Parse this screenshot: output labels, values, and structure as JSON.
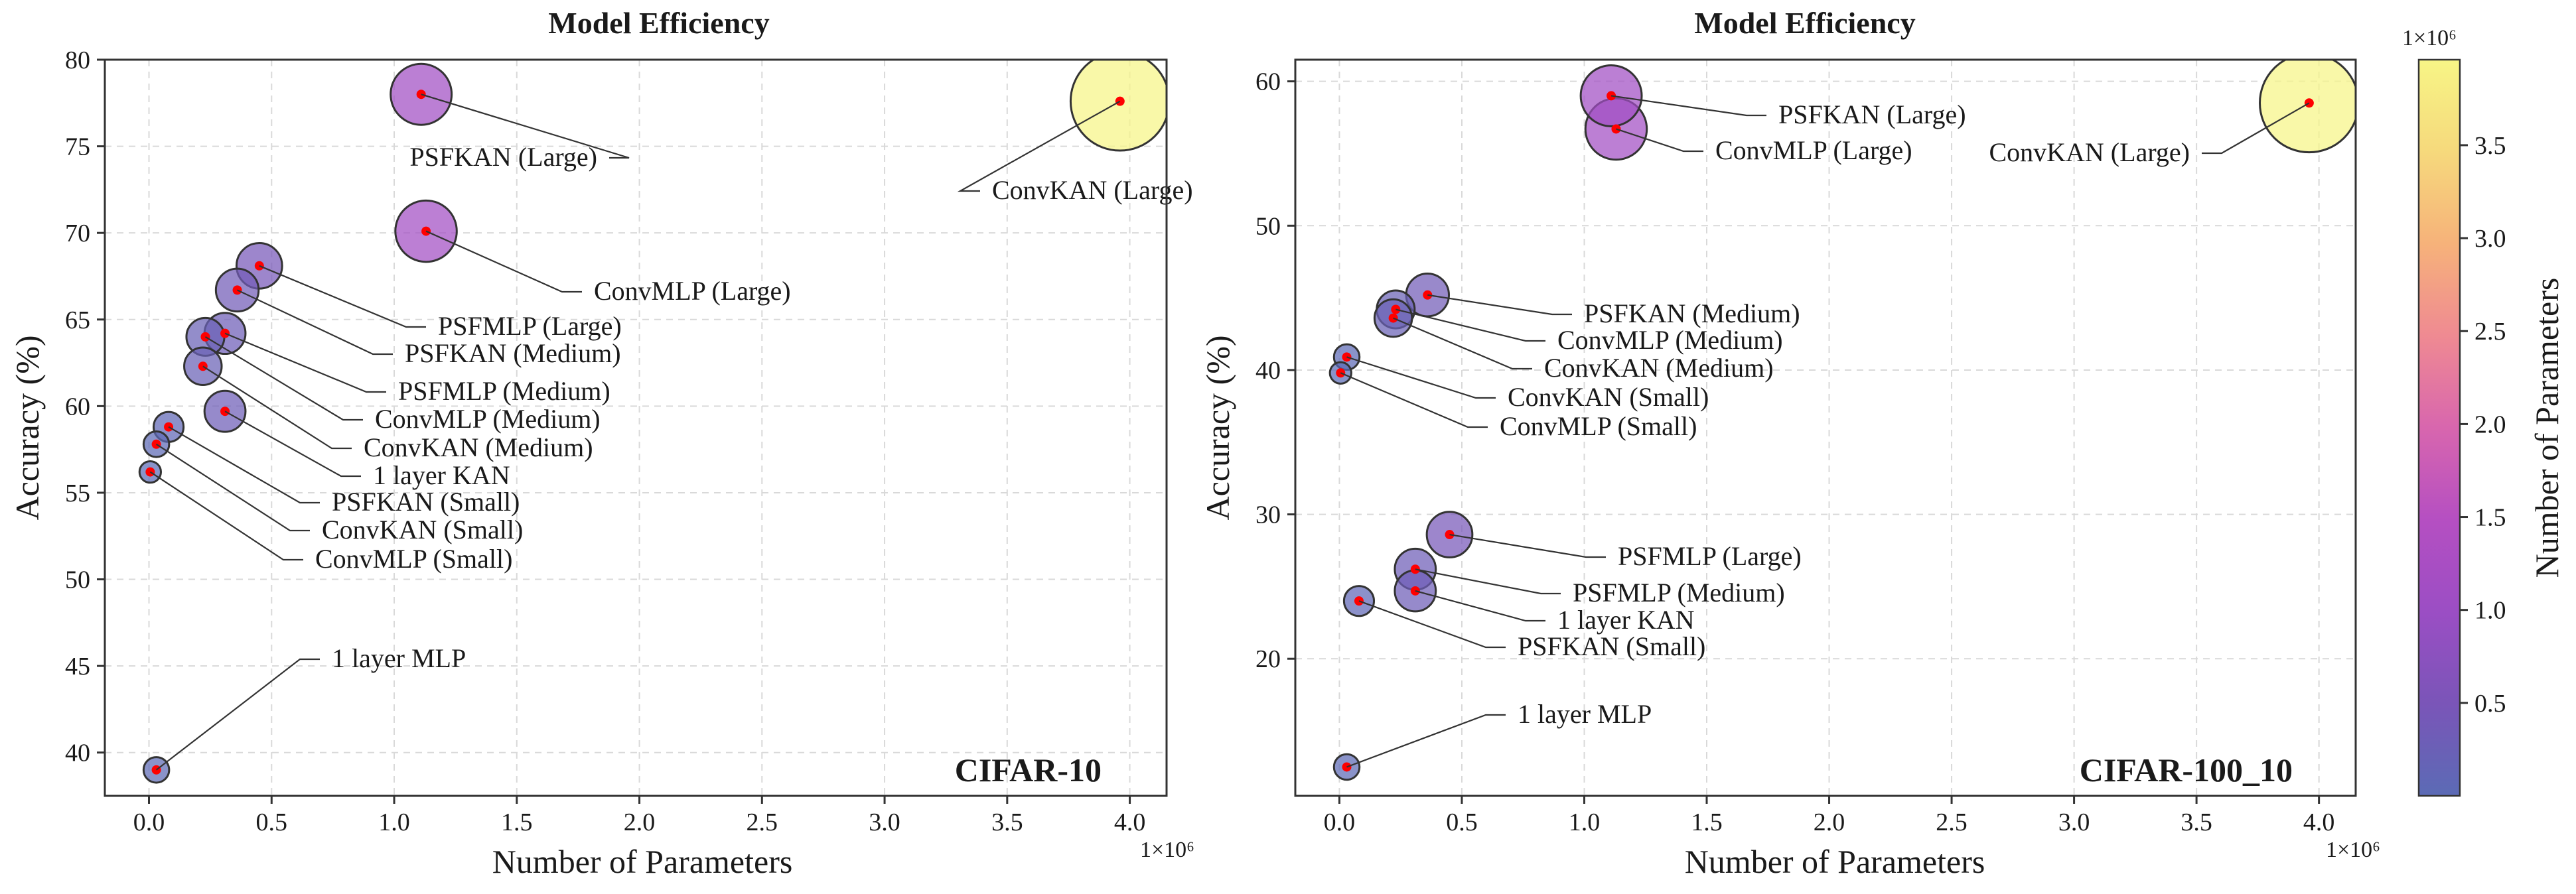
{
  "colorbar": {
    "label": "Number of Parameters",
    "multiplier": "1×10⁶",
    "ticks": [
      0.5,
      1.0,
      1.5,
      2.0,
      2.5,
      3.0,
      3.5
    ],
    "tick_labels": [
      "0.5",
      "1.0",
      "1.5",
      "2.0",
      "2.5",
      "3.0",
      "3.5"
    ],
    "range": [
      0,
      3960000
    ],
    "colors": [
      "#5b6bb5",
      "#7a55b8",
      "#9b4ec4",
      "#b54fc2",
      "#d866ae",
      "#ef8a92",
      "#f6b27a",
      "#f6d97c",
      "#f7f586"
    ]
  },
  "chart_data": [
    {
      "type": "scatter",
      "title": "Model Efficiency",
      "dataset_label": "CIFAR-10",
      "xlabel": "Number of Parameters",
      "ylabel": "Accuracy (%)",
      "x_multiplier": "1×10⁶",
      "xlim": [
        -0.18,
        4.15
      ],
      "ylim": [
        37.5,
        80
      ],
      "xticks": [
        0.0,
        0.5,
        1.0,
        1.5,
        2.0,
        2.5,
        3.0,
        3.5,
        4.0
      ],
      "xtick_labels": [
        "0.0",
        "0.5",
        "1.0",
        "1.5",
        "2.0",
        "2.5",
        "3.0",
        "3.5",
        "4.0"
      ],
      "yticks": [
        40,
        45,
        50,
        55,
        60,
        65,
        70,
        75,
        80
      ],
      "ytick_labels": [
        "40",
        "45",
        "50",
        "55",
        "60",
        "65",
        "70",
        "75",
        "80"
      ],
      "points": [
        {
          "label": "PSFKAN (Large)",
          "params": 1.11,
          "accuracy": 78.0
        },
        {
          "label": "ConvKAN (Large)",
          "params": 3.96,
          "accuracy": 77.6
        },
        {
          "label": "ConvMLP (Large)",
          "params": 1.13,
          "accuracy": 70.1
        },
        {
          "label": "PSFMLP (Large)",
          "params": 0.45,
          "accuracy": 68.1
        },
        {
          "label": "PSFKAN (Medium)",
          "params": 0.36,
          "accuracy": 66.7
        },
        {
          "label": "PSFMLP (Medium)",
          "params": 0.31,
          "accuracy": 64.2
        },
        {
          "label": "ConvMLP (Medium)",
          "params": 0.23,
          "accuracy": 64.0
        },
        {
          "label": "ConvKAN (Medium)",
          "params": 0.22,
          "accuracy": 62.3
        },
        {
          "label": "1 layer KAN",
          "params": 0.31,
          "accuracy": 59.7
        },
        {
          "label": "PSFKAN (Small)",
          "params": 0.08,
          "accuracy": 58.8
        },
        {
          "label": "ConvKAN (Small)",
          "params": 0.03,
          "accuracy": 57.8
        },
        {
          "label": "ConvMLP (Small)",
          "params": 0.005,
          "accuracy": 56.2
        },
        {
          "label": "1 layer MLP",
          "params": 0.03,
          "accuracy": 39.0
        }
      ]
    },
    {
      "type": "scatter",
      "title": "Model Efficiency",
      "dataset_label": "CIFAR-100_10",
      "xlabel": "Number of Parameters",
      "ylabel": "Accuracy (%)",
      "x_multiplier": "1×10⁶",
      "xlim": [
        -0.18,
        4.15
      ],
      "ylim": [
        10.5,
        61.5
      ],
      "xticks": [
        0.0,
        0.5,
        1.0,
        1.5,
        2.0,
        2.5,
        3.0,
        3.5,
        4.0
      ],
      "xtick_labels": [
        "0.0",
        "0.5",
        "1.0",
        "1.5",
        "2.0",
        "2.5",
        "3.0",
        "3.5",
        "4.0"
      ],
      "yticks": [
        20,
        30,
        40,
        50,
        60
      ],
      "ytick_labels": [
        "20",
        "30",
        "40",
        "50",
        "60"
      ],
      "points": [
        {
          "label": "PSFKAN (Large)",
          "params": 1.11,
          "accuracy": 59.0
        },
        {
          "label": "ConvMLP (Large)",
          "params": 1.13,
          "accuracy": 56.7
        },
        {
          "label": "ConvKAN (Large)",
          "params": 3.96,
          "accuracy": 58.5
        },
        {
          "label": "PSFKAN (Medium)",
          "params": 0.36,
          "accuracy": 45.2
        },
        {
          "label": "ConvMLP (Medium)",
          "params": 0.23,
          "accuracy": 44.2
        },
        {
          "label": "ConvKAN (Medium)",
          "params": 0.22,
          "accuracy": 43.6
        },
        {
          "label": "ConvKAN (Small)",
          "params": 0.03,
          "accuracy": 40.9
        },
        {
          "label": "ConvMLP (Small)",
          "params": 0.005,
          "accuracy": 39.8
        },
        {
          "label": "PSFMLP (Large)",
          "params": 0.45,
          "accuracy": 28.6
        },
        {
          "label": "PSFMLP (Medium)",
          "params": 0.31,
          "accuracy": 26.2
        },
        {
          "label": "1 layer KAN",
          "params": 0.31,
          "accuracy": 24.7
        },
        {
          "label": "PSFKAN (Small)",
          "params": 0.08,
          "accuracy": 24.0
        },
        {
          "label": "1 layer MLP",
          "params": 0.03,
          "accuracy": 12.5
        }
      ]
    }
  ]
}
